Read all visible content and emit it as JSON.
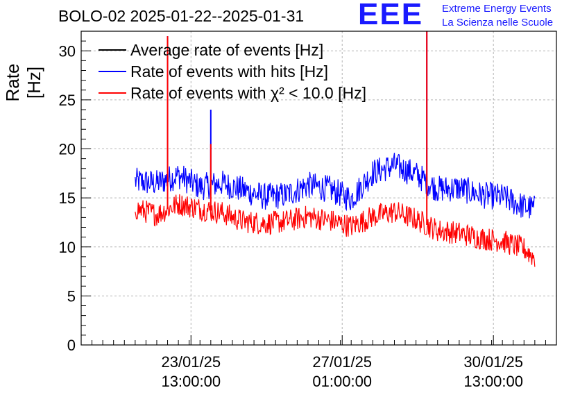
{
  "chart_data": {
    "type": "line",
    "title": "BOLO-02 2025-01-22--2025-01-31",
    "ylabel": "Rate [Hz]",
    "xlabel": "",
    "ylim": [
      0,
      32
    ],
    "yticks": [
      0,
      5,
      10,
      15,
      20,
      25,
      30
    ],
    "xlim": [
      "2025-01-21T00:00",
      "2025-02-01T00:00"
    ],
    "xticks": [
      {
        "time": "2025-01-23T13:00:00",
        "label_line1": "23/01/25",
        "label_line2": "13:00:00"
      },
      {
        "time": "2025-01-27T01:00:00",
        "label_line1": "27/01/25",
        "label_line2": "01:00:00"
      },
      {
        "time": "2025-01-30T13:00:00",
        "label_line1": "30/01/25",
        "label_line2": "13:00:00"
      }
    ],
    "grid": true,
    "legend_position": "top-left",
    "series": [
      {
        "name": "Average rate of events [Hz]",
        "color": "#000000",
        "x": [],
        "y": []
      },
      {
        "name": "Rate of events with hits [Hz]",
        "color": "#0000ff",
        "noise": 1.4,
        "x": [
          "2025-01-22T06:00",
          "2025-01-22T18:00",
          "2025-01-23T06:00",
          "2025-01-23T18:00",
          "2025-01-24T06:00",
          "2025-01-24T18:00",
          "2025-01-25T06:00",
          "2025-01-25T18:00",
          "2025-01-26T06:00",
          "2025-01-26T18:00",
          "2025-01-27T06:00",
          "2025-01-27T18:00",
          "2025-01-28T06:00",
          "2025-01-28T18:00",
          "2025-01-29T06:00",
          "2025-01-29T18:00",
          "2025-01-30T06:00",
          "2025-01-30T18:00",
          "2025-01-31T06:00",
          "2025-01-31T12:00"
        ],
        "y": [
          16.7,
          16.5,
          17.3,
          16.1,
          16.5,
          15.8,
          15.1,
          15.3,
          16.3,
          15.9,
          14.9,
          17.6,
          18.3,
          17.4,
          15.9,
          16.0,
          15.3,
          15.1,
          14.1,
          13.9
        ],
        "spikes": [
          {
            "x": "2025-01-23T00:00",
            "y": 31.5
          },
          {
            "x": "2025-01-24T00:00",
            "y": 24.0
          },
          {
            "x": "2025-01-29T00:00",
            "y": 32.0
          }
        ]
      },
      {
        "name": "Rate of events with χ² < 10.0 [Hz]",
        "color": "#ff0000",
        "noise": 1.2,
        "x": [
          "2025-01-22T06:00",
          "2025-01-22T18:00",
          "2025-01-23T06:00",
          "2025-01-23T18:00",
          "2025-01-24T06:00",
          "2025-01-24T18:00",
          "2025-01-25T06:00",
          "2025-01-25T18:00",
          "2025-01-26T06:00",
          "2025-01-26T18:00",
          "2025-01-27T06:00",
          "2025-01-27T18:00",
          "2025-01-28T06:00",
          "2025-01-28T18:00",
          "2025-01-29T06:00",
          "2025-01-29T18:00",
          "2025-01-30T06:00",
          "2025-01-30T18:00",
          "2025-01-31T06:00",
          "2025-01-31T12:00"
        ],
        "y": [
          13.9,
          13.3,
          14.4,
          13.9,
          13.5,
          12.6,
          12.4,
          12.6,
          13.1,
          12.7,
          12.1,
          13.1,
          13.6,
          12.8,
          11.7,
          11.4,
          10.9,
          10.6,
          9.8,
          8.9
        ],
        "spikes": [
          {
            "x": "2025-01-23T00:00",
            "y": 31.5
          },
          {
            "x": "2025-01-24T00:00",
            "y": 20.5
          },
          {
            "x": "2025-01-29T00:00",
            "y": 32.0
          }
        ]
      }
    ]
  },
  "logo": {
    "mark": "EEE",
    "line1": "Extreme Energy Events",
    "line2": "La Scienza nelle Scuole",
    "color": "#1a1aff"
  }
}
